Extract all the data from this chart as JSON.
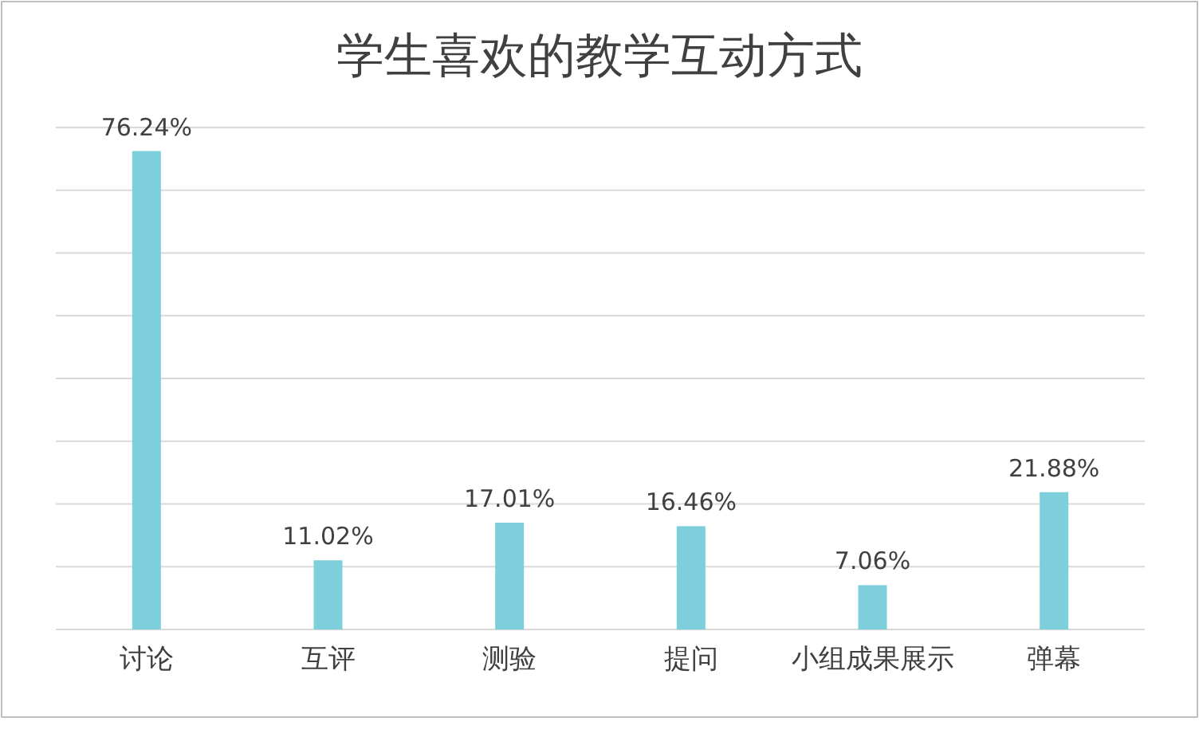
{
  "chart_data": {
    "type": "bar",
    "title": "学生喜欢的教学互动方式",
    "categories": [
      "讨论",
      "互评",
      "测验",
      "提问",
      "小组成果展示",
      "弹幕"
    ],
    "values": [
      76.24,
      11.02,
      17.01,
      16.46,
      7.06,
      21.88
    ],
    "value_labels": [
      "76.24%",
      "11.02%",
      "17.01%",
      "16.46%",
      "7.06%",
      "21.88%"
    ],
    "color": "#7ecfdc",
    "ylim": [
      0,
      80
    ],
    "yticks": [
      {
        "value": 0,
        "label": null
      },
      {
        "value": 10,
        "label": null
      },
      {
        "value": 20,
        "label": null
      },
      {
        "value": 30,
        "label": null
      },
      {
        "value": 40,
        "label": null
      },
      {
        "value": 50,
        "label": null
      },
      {
        "value": 60,
        "label": null
      },
      {
        "value": 70,
        "label": null
      },
      {
        "value": 80,
        "label": null
      }
    ],
    "grid": "y",
    "tick_labels": "x"
  }
}
